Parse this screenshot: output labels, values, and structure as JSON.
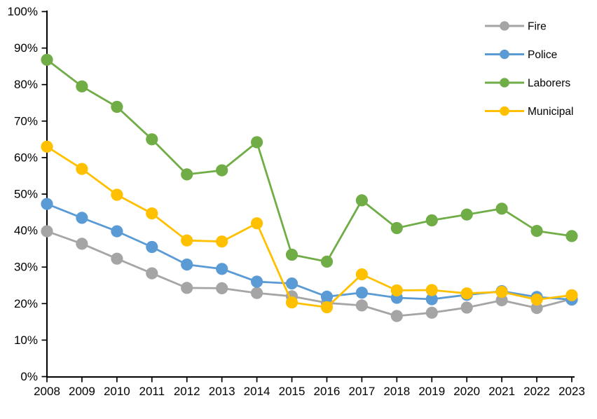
{
  "chart_data": {
    "type": "line",
    "title": "",
    "xlabel": "",
    "ylabel": "",
    "categories": [
      "2008",
      "2009",
      "2010",
      "2011",
      "2012",
      "2013",
      "2014",
      "2015",
      "2016",
      "2017",
      "2018",
      "2019",
      "2020",
      "2021",
      "2022",
      "2023"
    ],
    "series": [
      {
        "name": "Fire",
        "color": "#A5A5A5",
        "values": [
          39.8,
          36.4,
          32.3,
          28.3,
          24.3,
          24.2,
          22.9,
          22.0,
          20.2,
          19.5,
          16.6,
          17.5,
          18.9,
          20.9,
          18.8,
          21.3
        ]
      },
      {
        "name": "Police",
        "color": "#5B9BD5",
        "values": [
          47.3,
          43.5,
          39.8,
          35.5,
          30.7,
          29.5,
          26.0,
          25.5,
          21.9,
          23.0,
          21.6,
          21.2,
          22.4,
          23.4,
          21.8,
          21.1
        ]
      },
      {
        "name": "Laborers",
        "color": "#70AD47",
        "values": [
          86.8,
          79.5,
          73.9,
          65.0,
          55.4,
          56.5,
          64.2,
          33.4,
          31.5,
          48.3,
          40.7,
          42.8,
          44.4,
          46.0,
          39.9,
          38.5
        ]
      },
      {
        "name": "Municipal",
        "color": "#FFC000",
        "values": [
          63.0,
          56.9,
          49.8,
          44.7,
          37.3,
          37.0,
          42.0,
          20.3,
          19.0,
          28.0,
          23.6,
          23.7,
          22.8,
          23.2,
          21.1,
          22.3
        ]
      }
    ],
    "ylim": [
      0,
      100
    ],
    "ytick_step": 10,
    "ytick_suffix": "%",
    "grid": false,
    "legend_position": "top-right",
    "legend_labels": [
      "Fire",
      "Police",
      "Laborers",
      "Municipal"
    ],
    "axis_color": "#000000",
    "text_color": "#000000",
    "background": "#FFFFFF"
  }
}
